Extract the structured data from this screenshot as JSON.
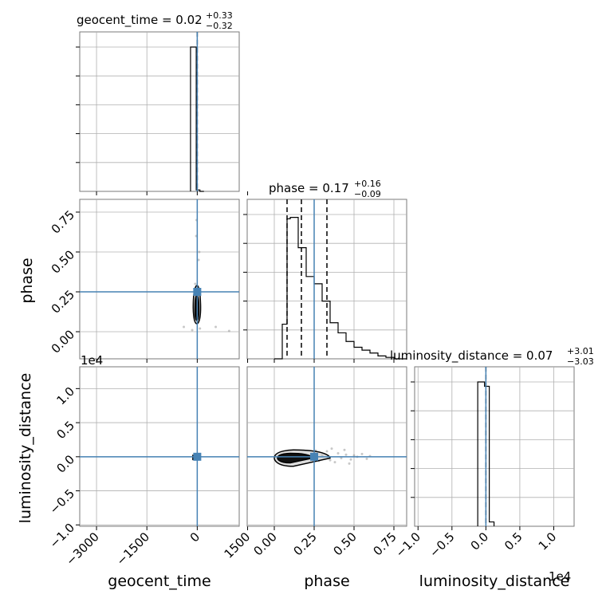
{
  "chart_data": {
    "type": "corner",
    "parameters": [
      "geocent_time",
      "phase",
      "luminosity_distance"
    ],
    "truth_color": "#4682b4",
    "truths": {
      "geocent_time": 0.0,
      "phase": 0.25,
      "luminosity_distance": 0.0
    },
    "titles": [
      {
        "parameter": "geocent_time",
        "prefix": "geocent_time = ",
        "value": "0.02",
        "plus": "+0.33",
        "minus": "−0.32"
      },
      {
        "parameter": "phase",
        "prefix": "phase = ",
        "value": "0.17",
        "plus": "+0.16",
        "minus": "−0.09"
      },
      {
        "parameter": "luminosity_distance",
        "prefix": "luminosity_distance = ",
        "value": "0.07",
        "plus": "+3.01",
        "minus": "−3.03"
      }
    ],
    "axis_labels": [
      "geocent_time",
      "phase",
      "luminosity_distance"
    ],
    "offset_label": "1e4",
    "axes": {
      "geocent_time": {
        "range": [
          -3500,
          1250
        ],
        "ticks": [
          -3000,
          -1500,
          0,
          1500
        ],
        "tick_labels": [
          "−3000",
          "−1500",
          "0",
          "1500"
        ]
      },
      "phase": {
        "range": [
          -0.17,
          0.83
        ],
        "ticks": [
          0.0,
          0.25,
          0.5,
          0.75
        ],
        "tick_labels": [
          "0.00",
          "0.25",
          "0.50",
          "0.75"
        ]
      },
      "luminosity_distance_x": {
        "range": [
          -1.05,
          1.3
        ],
        "ticks": [
          -1.0,
          -0.5,
          0.0,
          0.5,
          1.0
        ],
        "tick_labels": [
          "−1.0",
          "−0.5",
          "0.0",
          "0.5",
          "1.0"
        ]
      },
      "luminosity_distance_y": {
        "range": [
          -1.02,
          1.32
        ],
        "ticks": [
          -1.0,
          -0.5,
          0.0,
          0.5,
          1.0
        ],
        "tick_labels": [
          "−1.0",
          "−0.5",
          "0.0",
          "0.5",
          "1.0"
        ]
      }
    },
    "histograms": {
      "geocent_time": {
        "bin_edges": [
          -200,
          -30,
          80,
          200
        ],
        "counts": [
          1.0,
          0.01,
          0.0
        ],
        "quantile_lines": [
          0
        ]
      },
      "phase": {
        "bin_edges": [
          0.0,
          0.05,
          0.08,
          0.1,
          0.15,
          0.2,
          0.25,
          0.3,
          0.35,
          0.4,
          0.45,
          0.5,
          0.55,
          0.6,
          0.65,
          0.7,
          0.75,
          0.83
        ],
        "counts": [
          0.0,
          0.24,
          0.97,
          0.98,
          0.77,
          0.57,
          0.52,
          0.4,
          0.25,
          0.18,
          0.12,
          0.08,
          0.06,
          0.04,
          0.02,
          0.01,
          0.0
        ],
        "quantile_lines": [
          0.08,
          0.17,
          0.33
        ]
      },
      "luminosity_distance": {
        "bin_edges": [
          -0.12,
          -0.02,
          0.05,
          0.12
        ],
        "counts": [
          1.0,
          0.97,
          0.03
        ],
        "quantile_lines": [
          0.0
        ]
      }
    },
    "histogram_ticks": [
      0.2,
      0.4,
      0.6,
      0.8,
      1.0
    ],
    "scatter_samples": {
      "phase_vs_geocent_time": [
        {
          "x": -400,
          "y": 0.03
        },
        {
          "x": -150,
          "y": 0.01
        },
        {
          "x": 80,
          "y": 0.02
        },
        {
          "x": 550,
          "y": 0.03
        },
        {
          "x": 950,
          "y": 0.005
        },
        {
          "x": -30,
          "y": 0.6
        },
        {
          "x": 40,
          "y": 0.45
        },
        {
          "x": -60,
          "y": 0.3
        },
        {
          "x": 20,
          "y": 0.18
        },
        {
          "x": -80,
          "y": 0.1
        },
        {
          "x": 60,
          "y": 0.5
        },
        {
          "x": -20,
          "y": 0.7
        }
      ],
      "luminosity_distance_vs_phase": [
        {
          "x": 0.3,
          "y": 0.02
        },
        {
          "x": 0.35,
          "y": -0.05
        },
        {
          "x": 0.4,
          "y": 0.05
        },
        {
          "x": 0.42,
          "y": -0.02
        },
        {
          "x": 0.45,
          "y": 0.03
        },
        {
          "x": 0.48,
          "y": -0.04
        },
        {
          "x": 0.5,
          "y": 0.02
        },
        {
          "x": 0.52,
          "y": 0.0
        },
        {
          "x": 0.55,
          "y": 0.04
        },
        {
          "x": 0.58,
          "y": -0.03
        },
        {
          "x": 0.33,
          "y": 0.08
        },
        {
          "x": 0.38,
          "y": -0.08
        },
        {
          "x": 0.44,
          "y": 0.1
        },
        {
          "x": 0.28,
          "y": -0.06
        },
        {
          "x": 0.36,
          "y": 0.12
        },
        {
          "x": 0.47,
          "y": -0.1
        },
        {
          "x": 0.6,
          "y": 0.01
        },
        {
          "x": 0.26,
          "y": 0.09
        }
      ]
    },
    "contours": {
      "phase_vs_geocent_time": [
        {
          "cx": -10,
          "rx": 110,
          "cy": 0.15,
          "ry_low": 0.1,
          "ry_high": 0.14
        },
        {
          "cx": -10,
          "rx": 60,
          "cy": 0.14,
          "ry_low": 0.07,
          "ry_high": 0.09
        }
      ],
      "luminosity_distance_vs_phase": [
        {
          "cx": 0.12,
          "rx_low": 0.12,
          "rx_high": 0.23,
          "cy": -0.02,
          "ry": 0.12
        },
        {
          "cx": 0.1,
          "rx_low": 0.08,
          "rx_high": 0.14,
          "cy": -0.02,
          "ry": 0.07
        }
      ]
    }
  }
}
